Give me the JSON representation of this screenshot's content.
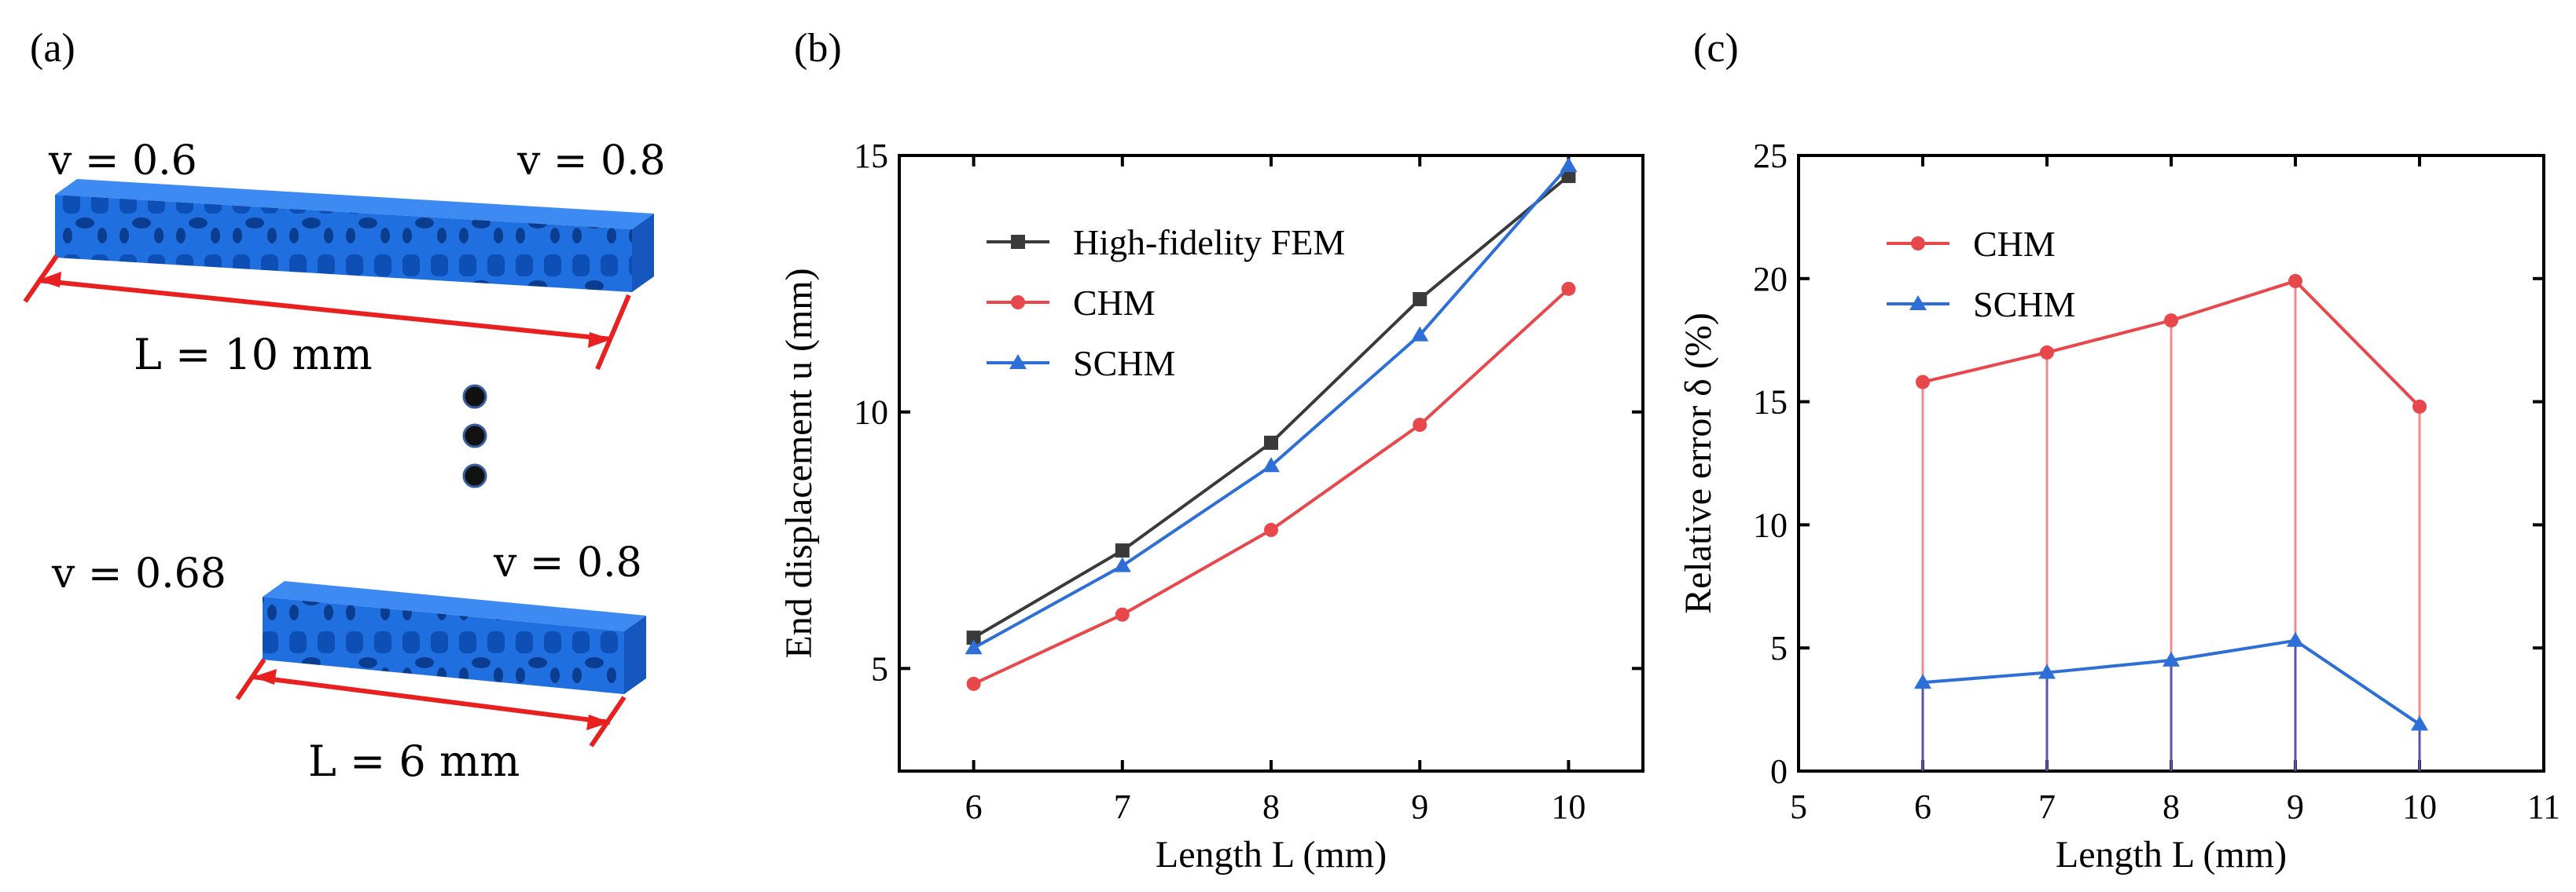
{
  "panels": {
    "a": {
      "tag": "(a)",
      "long_beam": {
        "v_left": "v = 0.6",
        "v_right": "v = 0.8",
        "length": "L = 10  mm"
      },
      "short_beam": {
        "v_left": "v = 0.68",
        "v_right": "v = 0.8",
        "length": "L = 6  mm"
      }
    },
    "b": {
      "tag": "(b)"
    },
    "c": {
      "tag": "(c)"
    }
  },
  "colors": {
    "fem": "#3a3a3a",
    "chm": "#e8474b",
    "schm": "#2d6fd6",
    "beam": "#1f6fe0",
    "dim": "#e82020"
  },
  "chart_data": [
    {
      "type": "line",
      "xlabel": "Length L (mm)",
      "ylabel": "End displacement u (mm)",
      "xlim": [
        5.5,
        10.5
      ],
      "ylim": [
        3,
        15
      ],
      "xticks": [
        6,
        7,
        8,
        9,
        10
      ],
      "yticks": [
        5,
        10,
        15
      ],
      "legend_position": "top-left",
      "x": [
        6,
        7,
        8,
        9,
        10
      ],
      "series": [
        {
          "name": "High-fidelity FEM",
          "marker": "square",
          "color": "#3a3a3a",
          "values": [
            5.6,
            7.3,
            9.4,
            12.2,
            14.6
          ]
        },
        {
          "name": "CHM",
          "marker": "circle",
          "color": "#e8474b",
          "values": [
            4.7,
            6.05,
            7.7,
            9.75,
            12.4
          ]
        },
        {
          "name": "SCHM",
          "marker": "triangle",
          "color": "#2d6fd6",
          "values": [
            5.4,
            7.0,
            8.95,
            11.5,
            14.8
          ]
        }
      ]
    },
    {
      "type": "line",
      "xlabel": "Length L (mm)",
      "ylabel": "Relative error δ (%)",
      "xlim": [
        5,
        11
      ],
      "ylim": [
        0,
        25
      ],
      "xticks": [
        5,
        6,
        7,
        8,
        9,
        10,
        11
      ],
      "yticks": [
        0,
        5,
        10,
        15,
        20,
        25
      ],
      "legend_position": "top-left",
      "drop_lines": true,
      "x": [
        6,
        7,
        8,
        9,
        10
      ],
      "series": [
        {
          "name": "CHM",
          "marker": "circle",
          "color": "#e8474b",
          "values": [
            15.8,
            17.0,
            18.3,
            19.9,
            14.8
          ]
        },
        {
          "name": "SCHM",
          "marker": "triangle",
          "color": "#2d6fd6",
          "values": [
            3.6,
            4.0,
            4.5,
            5.3,
            1.9
          ]
        }
      ]
    }
  ]
}
